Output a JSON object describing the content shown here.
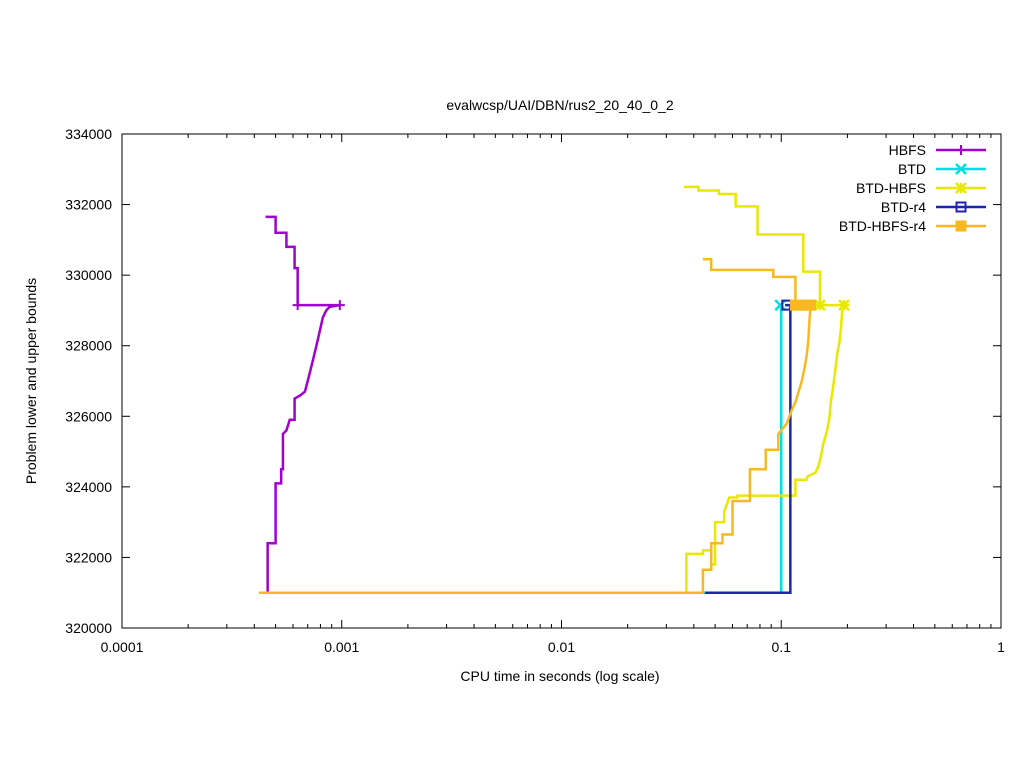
{
  "chart_data": {
    "type": "line",
    "title": "evalwcsp/UAI/DBN/rus2_20_40_0_2",
    "xlabel": "CPU time in seconds (log scale)",
    "ylabel": "Problem lower and upper bounds",
    "xscale": "log",
    "xlim": [
      0.0001,
      1
    ],
    "ylim": [
      320000,
      334000
    ],
    "grid": false,
    "legend_position": "top-right",
    "x_ticks": [
      {
        "value": 0.0001,
        "label": "0.0001"
      },
      {
        "value": 0.001,
        "label": "0.001"
      },
      {
        "value": 0.01,
        "label": "0.01"
      },
      {
        "value": 0.1,
        "label": "0.1"
      },
      {
        "value": 1,
        "label": "1"
      }
    ],
    "y_ticks": [
      {
        "value": 320000,
        "label": "320000"
      },
      {
        "value": 322000,
        "label": "322000"
      },
      {
        "value": 324000,
        "label": "324000"
      },
      {
        "value": 326000,
        "label": "326000"
      },
      {
        "value": 328000,
        "label": "328000"
      },
      {
        "value": 330000,
        "label": "330000"
      },
      {
        "value": 332000,
        "label": "332000"
      },
      {
        "value": 334000,
        "label": "334000"
      }
    ],
    "series": [
      {
        "name": "HBFS",
        "color": "#a000d0",
        "marker": "plus",
        "upper": [
          [
            0.00045,
            331650
          ],
          [
            0.0005,
            331650
          ],
          [
            0.0005,
            331200
          ],
          [
            0.00056,
            331200
          ],
          [
            0.00056,
            330800
          ],
          [
            0.00061,
            330800
          ],
          [
            0.00061,
            330200
          ],
          [
            0.00063,
            330200
          ],
          [
            0.00063,
            329150
          ],
          [
            0.00098,
            329150
          ]
        ],
        "lower": [
          [
            0.00046,
            321000
          ],
          [
            0.00046,
            322400
          ],
          [
            0.0005,
            322400
          ],
          [
            0.0005,
            324100
          ],
          [
            0.00053,
            324100
          ],
          [
            0.00053,
            324500
          ],
          [
            0.00054,
            324500
          ],
          [
            0.00054,
            325500
          ],
          [
            0.00056,
            325600
          ],
          [
            0.00058,
            325900
          ],
          [
            0.00061,
            325900
          ],
          [
            0.00061,
            326500
          ],
          [
            0.00065,
            326600
          ],
          [
            0.00068,
            326700
          ],
          [
            0.0007,
            327000
          ],
          [
            0.00072,
            327300
          ],
          [
            0.00074,
            327600
          ],
          [
            0.00076,
            327900
          ],
          [
            0.00078,
            328200
          ],
          [
            0.0008,
            328500
          ],
          [
            0.00082,
            328800
          ],
          [
            0.00085,
            329000
          ],
          [
            0.00088,
            329100
          ],
          [
            0.00098,
            329150
          ]
        ],
        "markers": [
          [
            0.00063,
            329150
          ],
          [
            0.00098,
            329150
          ]
        ]
      },
      {
        "name": "BTD",
        "color": "#00e0e0",
        "marker": "cross",
        "upper": [],
        "lower": [
          [
            0.00042,
            321000
          ],
          [
            0.1,
            321000
          ],
          [
            0.1,
            329150
          ]
        ],
        "markers": [
          [
            0.099,
            329150
          ]
        ]
      },
      {
        "name": "BTD-HBFS",
        "color": "#e8e800",
        "marker": "star",
        "upper": [
          [
            0.036,
            332500
          ],
          [
            0.042,
            332500
          ],
          [
            0.042,
            332400
          ],
          [
            0.052,
            332400
          ],
          [
            0.052,
            332300
          ],
          [
            0.062,
            332300
          ],
          [
            0.062,
            331950
          ],
          [
            0.078,
            331950
          ],
          [
            0.078,
            331150
          ],
          [
            0.126,
            331150
          ],
          [
            0.126,
            330100
          ],
          [
            0.15,
            330100
          ],
          [
            0.15,
            329150
          ],
          [
            0.193,
            329150
          ]
        ],
        "lower": [
          [
            0.037,
            321000
          ],
          [
            0.037,
            322100
          ],
          [
            0.044,
            322100
          ],
          [
            0.044,
            322200
          ],
          [
            0.048,
            322200
          ],
          [
            0.048,
            321800
          ],
          [
            0.05,
            321800
          ],
          [
            0.05,
            323000
          ],
          [
            0.055,
            323000
          ],
          [
            0.055,
            323300
          ],
          [
            0.058,
            323700
          ],
          [
            0.063,
            323700
          ],
          [
            0.063,
            323750
          ],
          [
            0.116,
            323750
          ],
          [
            0.116,
            324200
          ],
          [
            0.13,
            324200
          ],
          [
            0.132,
            324300
          ],
          [
            0.143,
            324400
          ],
          [
            0.148,
            324600
          ],
          [
            0.152,
            324900
          ],
          [
            0.155,
            325200
          ],
          [
            0.16,
            325500
          ],
          [
            0.163,
            325700
          ],
          [
            0.166,
            326000
          ],
          [
            0.168,
            326400
          ],
          [
            0.172,
            326800
          ],
          [
            0.176,
            327300
          ],
          [
            0.18,
            327800
          ],
          [
            0.184,
            328100
          ],
          [
            0.187,
            328500
          ],
          [
            0.19,
            329150
          ],
          [
            0.193,
            329150
          ]
        ],
        "markers": [
          [
            0.15,
            329150
          ],
          [
            0.193,
            329150
          ]
        ]
      },
      {
        "name": "BTD-r4",
        "color": "#1c24b0",
        "marker": "square",
        "upper": [],
        "lower": [
          [
            0.045,
            321000
          ],
          [
            0.11,
            321000
          ],
          [
            0.11,
            329150
          ],
          [
            0.104,
            329150
          ]
        ],
        "markers": [
          [
            0.106,
            329150
          ]
        ]
      },
      {
        "name": "BTD-HBFS-r4",
        "color": "#f8b820",
        "marker": "filled-square",
        "upper": [
          [
            0.044,
            330450
          ],
          [
            0.048,
            330450
          ],
          [
            0.048,
            330150
          ],
          [
            0.092,
            330150
          ],
          [
            0.092,
            329950
          ],
          [
            0.116,
            329950
          ],
          [
            0.116,
            329150
          ],
          [
            0.136,
            329150
          ]
        ],
        "lower": [
          [
            0.00042,
            321000
          ],
          [
            0.044,
            321000
          ],
          [
            0.044,
            321650
          ],
          [
            0.048,
            321650
          ],
          [
            0.048,
            322400
          ],
          [
            0.054,
            322400
          ],
          [
            0.054,
            322650
          ],
          [
            0.06,
            322650
          ],
          [
            0.06,
            323600
          ],
          [
            0.072,
            323600
          ],
          [
            0.072,
            324500
          ],
          [
            0.085,
            324500
          ],
          [
            0.085,
            325050
          ],
          [
            0.097,
            325050
          ],
          [
            0.097,
            325500
          ],
          [
            0.103,
            325700
          ],
          [
            0.106,
            325800
          ],
          [
            0.109,
            326000
          ],
          [
            0.112,
            326200
          ],
          [
            0.116,
            326400
          ],
          [
            0.12,
            326700
          ],
          [
            0.124,
            327000
          ],
          [
            0.128,
            327400
          ],
          [
            0.131,
            327800
          ],
          [
            0.133,
            328200
          ],
          [
            0.134,
            328600
          ],
          [
            0.136,
            329150
          ]
        ],
        "markers": [
          [
            0.116,
            329150
          ],
          [
            0.124,
            329150
          ],
          [
            0.132,
            329150
          ],
          [
            0.136,
            329150
          ]
        ]
      }
    ]
  }
}
